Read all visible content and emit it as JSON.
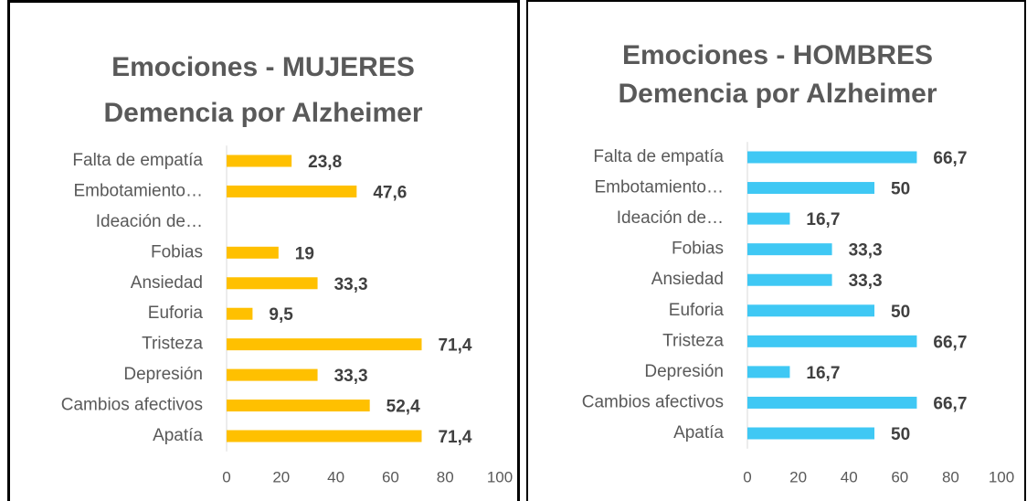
{
  "chart_data": [
    {
      "type": "bar",
      "orientation": "horizontal",
      "title": "Emociones - MUJERES",
      "subtitle": "Demencia por Alzheimer",
      "categories": [
        "Falta de empatía",
        "Embotamiento…",
        "Ideación de…",
        "Fobias",
        "Ansiedad",
        "Euforia",
        "Tristeza",
        "Depresión",
        "Cambios afectivos",
        "Apatía"
      ],
      "values": [
        23.8,
        47.6,
        null,
        19,
        33.3,
        9.5,
        71.4,
        33.3,
        52.4,
        71.4
      ],
      "value_labels": [
        "23,8",
        "47,6",
        null,
        "19",
        "33,3",
        "9,5",
        "71,4",
        "33,3",
        "52,4",
        "71,4"
      ],
      "color": "#FFC000",
      "xlim": [
        0,
        100
      ],
      "xticks": [
        0,
        20,
        40,
        60,
        80,
        100
      ]
    },
    {
      "type": "bar",
      "orientation": "horizontal",
      "title": "Emociones - HOMBRES",
      "subtitle": "Demencia por Alzheimer",
      "categories": [
        "Falta de empatía",
        "Embotamiento…",
        "Ideación de…",
        "Fobias",
        "Ansiedad",
        "Euforia",
        "Tristeza",
        "Depresión",
        "Cambios afectivos",
        "Apatía"
      ],
      "values": [
        66.7,
        50,
        16.7,
        33.3,
        33.3,
        50,
        66.7,
        16.7,
        66.7,
        50
      ],
      "value_labels": [
        "66,7",
        "50",
        "16,7",
        "33,3",
        "33,3",
        "50",
        "66,7",
        "16,7",
        "66,7",
        "50"
      ],
      "color": "#3FC8F4",
      "xlim": [
        0,
        100
      ],
      "xticks": [
        0,
        20,
        40,
        60,
        80,
        100
      ]
    }
  ]
}
